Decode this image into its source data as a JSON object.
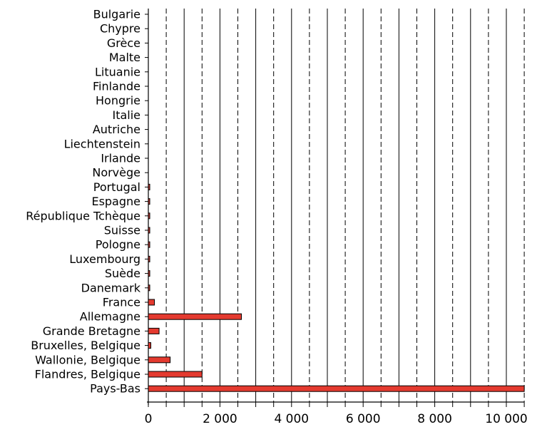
{
  "chart_data": {
    "type": "bar",
    "orientation": "horizontal",
    "title": "",
    "xlabel": "",
    "ylabel": "",
    "xlim": [
      0,
      10500
    ],
    "xticks": [
      0,
      2000,
      4000,
      6000,
      8000,
      10000
    ],
    "xtick_labels": [
      "0",
      "2 000",
      "4 000",
      "6 000",
      "8 000",
      "10 000"
    ],
    "grid": "vertical lines every 500 (solid at 1000 multiples, dashed at 500 midpoints)",
    "bar_color": "#e43a2f",
    "categories": [
      "Bulgarie",
      "Chypre",
      "Grèce",
      "Malte",
      "Lituanie",
      "Finlande",
      "Hongrie",
      "Italie",
      "Autriche",
      "Liechtenstein",
      "Irlande",
      "Norvège",
      "Portugal",
      "Espagne",
      "République Tchèque",
      "Suisse",
      "Pologne",
      "Luxembourg",
      "Suède",
      "Danemark",
      "France",
      "Allemagne",
      "Grande Bretagne",
      "Bruxelles, Belgique",
      "Wallonie, Belgique",
      "Flandres, Belgique",
      "Pays-Bas"
    ],
    "values": [
      0,
      0,
      0,
      0,
      0,
      0,
      0,
      0,
      0,
      0,
      0,
      0,
      20,
      20,
      20,
      20,
      20,
      20,
      20,
      20,
      170,
      2600,
      300,
      70,
      610,
      1500,
      10500
    ]
  }
}
